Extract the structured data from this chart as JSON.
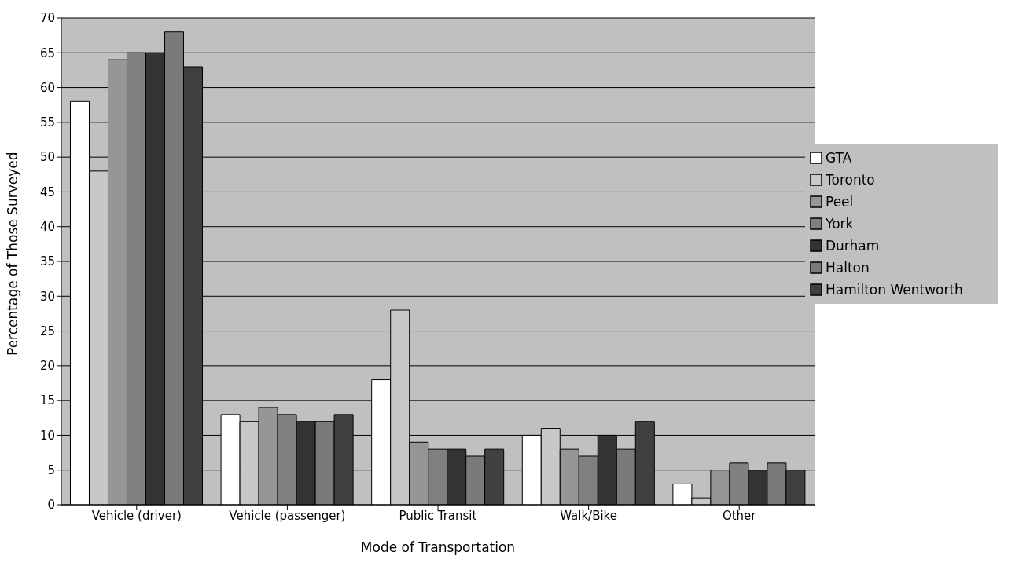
{
  "chart_data": {
    "type": "bar",
    "xlabel": "Mode of Transportation",
    "ylabel": "Percentage of Those Surveyed",
    "categories": [
      "Vehicle (driver)",
      "Vehicle (passenger)",
      "Public Transit",
      "Walk/Bike",
      "Other"
    ],
    "series": [
      {
        "name": "GTA",
        "color": "#ffffff",
        "values": [
          58,
          13,
          18,
          10,
          3
        ]
      },
      {
        "name": "Toronto",
        "color": "#c8c8c8",
        "values": [
          48,
          12,
          28,
          11,
          1
        ]
      },
      {
        "name": "Peel",
        "color": "#969696",
        "values": [
          64,
          14,
          9,
          8,
          5
        ]
      },
      {
        "name": "York",
        "color": "#808080",
        "values": [
          65,
          13,
          8,
          7,
          6
        ]
      },
      {
        "name": "Durham",
        "color": "#333333",
        "values": [
          65,
          12,
          8,
          10,
          5
        ]
      },
      {
        "name": "Halton",
        "color": "#7a7a7a",
        "values": [
          68,
          12,
          7,
          8,
          6
        ]
      },
      {
        "name": "Hamilton Wentworth",
        "color": "#404040",
        "values": [
          63,
          13,
          8,
          12,
          5
        ]
      }
    ],
    "ylim": [
      0,
      70
    ],
    "yticks": [
      0,
      5,
      10,
      15,
      20,
      25,
      30,
      35,
      40,
      45,
      50,
      55,
      60,
      65,
      70
    ],
    "grid": "y",
    "legend": "right"
  }
}
